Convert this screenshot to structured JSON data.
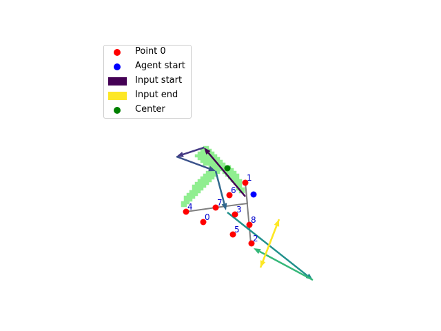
{
  "chart_data": {
    "type": "scatter",
    "title": "",
    "xlabel": "",
    "ylabel": "",
    "axes_visible": false,
    "xlim": [
      0,
      640
    ],
    "ylim": [
      480,
      0
    ],
    "legend": {
      "placement": "upper-left",
      "entries": [
        {
          "label": "Point 0",
          "color": "#ff0000",
          "marker": "circle"
        },
        {
          "label": "Agent start",
          "color": "#0000ff",
          "marker": "circle"
        },
        {
          "label": "Input start",
          "color": "#440154",
          "marker": "patch"
        },
        {
          "label": "Input end",
          "color": "#fde725",
          "marker": "patch"
        },
        {
          "label": "Center",
          "color": "#008000",
          "marker": "circle"
        }
      ]
    },
    "shape_cells": {
      "color": "#90ee90",
      "cells": [
        [
          297,
          214
        ],
        [
          301,
          214
        ],
        [
          293,
          218
        ],
        [
          297,
          218
        ],
        [
          301,
          218
        ],
        [
          305,
          218
        ],
        [
          289,
          222
        ],
        [
          293,
          222
        ],
        [
          297,
          222
        ],
        [
          301,
          222
        ],
        [
          305,
          222
        ],
        [
          309,
          222
        ],
        [
          285,
          226
        ],
        [
          289,
          226
        ],
        [
          293,
          226
        ],
        [
          297,
          226
        ],
        [
          301,
          226
        ],
        [
          305,
          226
        ],
        [
          309,
          226
        ],
        [
          313,
          226
        ],
        [
          289,
          230
        ],
        [
          293,
          230
        ],
        [
          297,
          230
        ],
        [
          301,
          230
        ],
        [
          305,
          230
        ],
        [
          309,
          230
        ],
        [
          313,
          230
        ],
        [
          317,
          230
        ],
        [
          293,
          234
        ],
        [
          297,
          234
        ],
        [
          301,
          234
        ],
        [
          305,
          234
        ],
        [
          309,
          234
        ],
        [
          313,
          234
        ],
        [
          317,
          234
        ],
        [
          321,
          234
        ],
        [
          297,
          238
        ],
        [
          301,
          238
        ],
        [
          305,
          238
        ],
        [
          309,
          238
        ],
        [
          313,
          238
        ],
        [
          317,
          238
        ],
        [
          321,
          238
        ],
        [
          325,
          238
        ],
        [
          305,
          242
        ],
        [
          309,
          242
        ],
        [
          313,
          242
        ],
        [
          317,
          242
        ],
        [
          321,
          242
        ],
        [
          325,
          242
        ],
        [
          329,
          242
        ],
        [
          333,
          242
        ],
        [
          305,
          246
        ],
        [
          309,
          246
        ],
        [
          313,
          246
        ],
        [
          317,
          246
        ],
        [
          321,
          246
        ],
        [
          325,
          246
        ],
        [
          329,
          246
        ],
        [
          333,
          246
        ],
        [
          337,
          246
        ],
        [
          301,
          250
        ],
        [
          305,
          250
        ],
        [
          309,
          250
        ],
        [
          313,
          250
        ],
        [
          317,
          250
        ],
        [
          325,
          250
        ],
        [
          329,
          250
        ],
        [
          333,
          250
        ],
        [
          337,
          250
        ],
        [
          341,
          250
        ],
        [
          297,
          254
        ],
        [
          301,
          254
        ],
        [
          305,
          254
        ],
        [
          309,
          254
        ],
        [
          313,
          254
        ],
        [
          329,
          254
        ],
        [
          333,
          254
        ],
        [
          337,
          254
        ],
        [
          341,
          254
        ],
        [
          345,
          254
        ],
        [
          293,
          258
        ],
        [
          297,
          258
        ],
        [
          301,
          258
        ],
        [
          305,
          258
        ],
        [
          309,
          258
        ],
        [
          333,
          258
        ],
        [
          337,
          258
        ],
        [
          341,
          258
        ],
        [
          345,
          258
        ],
        [
          289,
          262
        ],
        [
          293,
          262
        ],
        [
          297,
          262
        ],
        [
          301,
          262
        ],
        [
          305,
          262
        ],
        [
          337,
          262
        ],
        [
          341,
          262
        ],
        [
          345,
          262
        ],
        [
          349,
          262
        ],
        [
          285,
          266
        ],
        [
          289,
          266
        ],
        [
          293,
          266
        ],
        [
          297,
          266
        ],
        [
          301,
          266
        ],
        [
          341,
          266
        ],
        [
          345,
          266
        ],
        [
          349,
          266
        ],
        [
          281,
          270
        ],
        [
          285,
          270
        ],
        [
          289,
          270
        ],
        [
          293,
          270
        ],
        [
          297,
          270
        ],
        [
          345,
          270
        ],
        [
          349,
          270
        ],
        [
          281,
          274
        ],
        [
          285,
          274
        ],
        [
          289,
          274
        ],
        [
          293,
          274
        ],
        [
          345,
          274
        ],
        [
          349,
          274
        ],
        [
          353,
          274
        ],
        [
          277,
          278
        ],
        [
          281,
          278
        ],
        [
          285,
          278
        ],
        [
          289,
          278
        ],
        [
          349,
          278
        ],
        [
          353,
          278
        ],
        [
          273,
          282
        ],
        [
          277,
          282
        ],
        [
          281,
          282
        ],
        [
          285,
          282
        ],
        [
          269,
          286
        ],
        [
          273,
          286
        ],
        [
          277,
          286
        ],
        [
          281,
          286
        ],
        [
          269,
          290
        ],
        [
          273,
          290
        ],
        [
          277,
          290
        ],
        [
          265,
          294
        ],
        [
          269,
          294
        ],
        [
          273,
          294
        ],
        [
          265,
          298
        ],
        [
          269,
          298
        ]
      ]
    },
    "path": {
      "color": "#808080",
      "points": [
        [
          270,
          307
        ],
        [
          313,
          301
        ],
        [
          359,
          295
        ],
        [
          356,
          265
        ],
        [
          364,
          353
        ]
      ]
    },
    "arrows": [
      {
        "from": [
          356,
          285
        ],
        "to": [
          296,
          214
        ],
        "color": "#440154"
      },
      {
        "from": [
          296,
          214
        ],
        "to": [
          256,
          227
        ],
        "color": "#443983"
      },
      {
        "from": [
          256,
          227
        ],
        "to": [
          313,
          248
        ],
        "color": "#3b528b"
      },
      {
        "from": [
          313,
          248
        ],
        "to": [
          328,
          305
        ],
        "color": "#31688e"
      },
      {
        "from": [
          330,
          308
        ],
        "to": [
          454,
          406
        ],
        "color": "#21918c"
      },
      {
        "from": [
          454,
          406
        ],
        "to": [
          368,
          360
        ],
        "color": "#35b779"
      },
      {
        "from": [
          378,
          388
        ],
        "to": [
          405,
          318
        ],
        "color": "#fde725"
      },
      {
        "from": [
          405,
          318
        ],
        "to": [
          378,
          388
        ],
        "color": "#fde725"
      }
    ],
    "points": [
      {
        "label": "0",
        "x": 295,
        "y": 322
      },
      {
        "label": "1",
        "x": 356,
        "y": 265
      },
      {
        "label": "2",
        "x": 365,
        "y": 353
      },
      {
        "label": "3",
        "x": 341,
        "y": 311
      },
      {
        "label": "4",
        "x": 270,
        "y": 307
      },
      {
        "label": "5",
        "x": 338,
        "y": 340
      },
      {
        "label": "6",
        "x": 333,
        "y": 283
      },
      {
        "label": "7",
        "x": 313,
        "y": 301
      },
      {
        "label": "8",
        "x": 362,
        "y": 326
      }
    ],
    "agent_start": {
      "x": 368,
      "y": 282
    },
    "center": {
      "x": 330,
      "y": 244
    }
  }
}
